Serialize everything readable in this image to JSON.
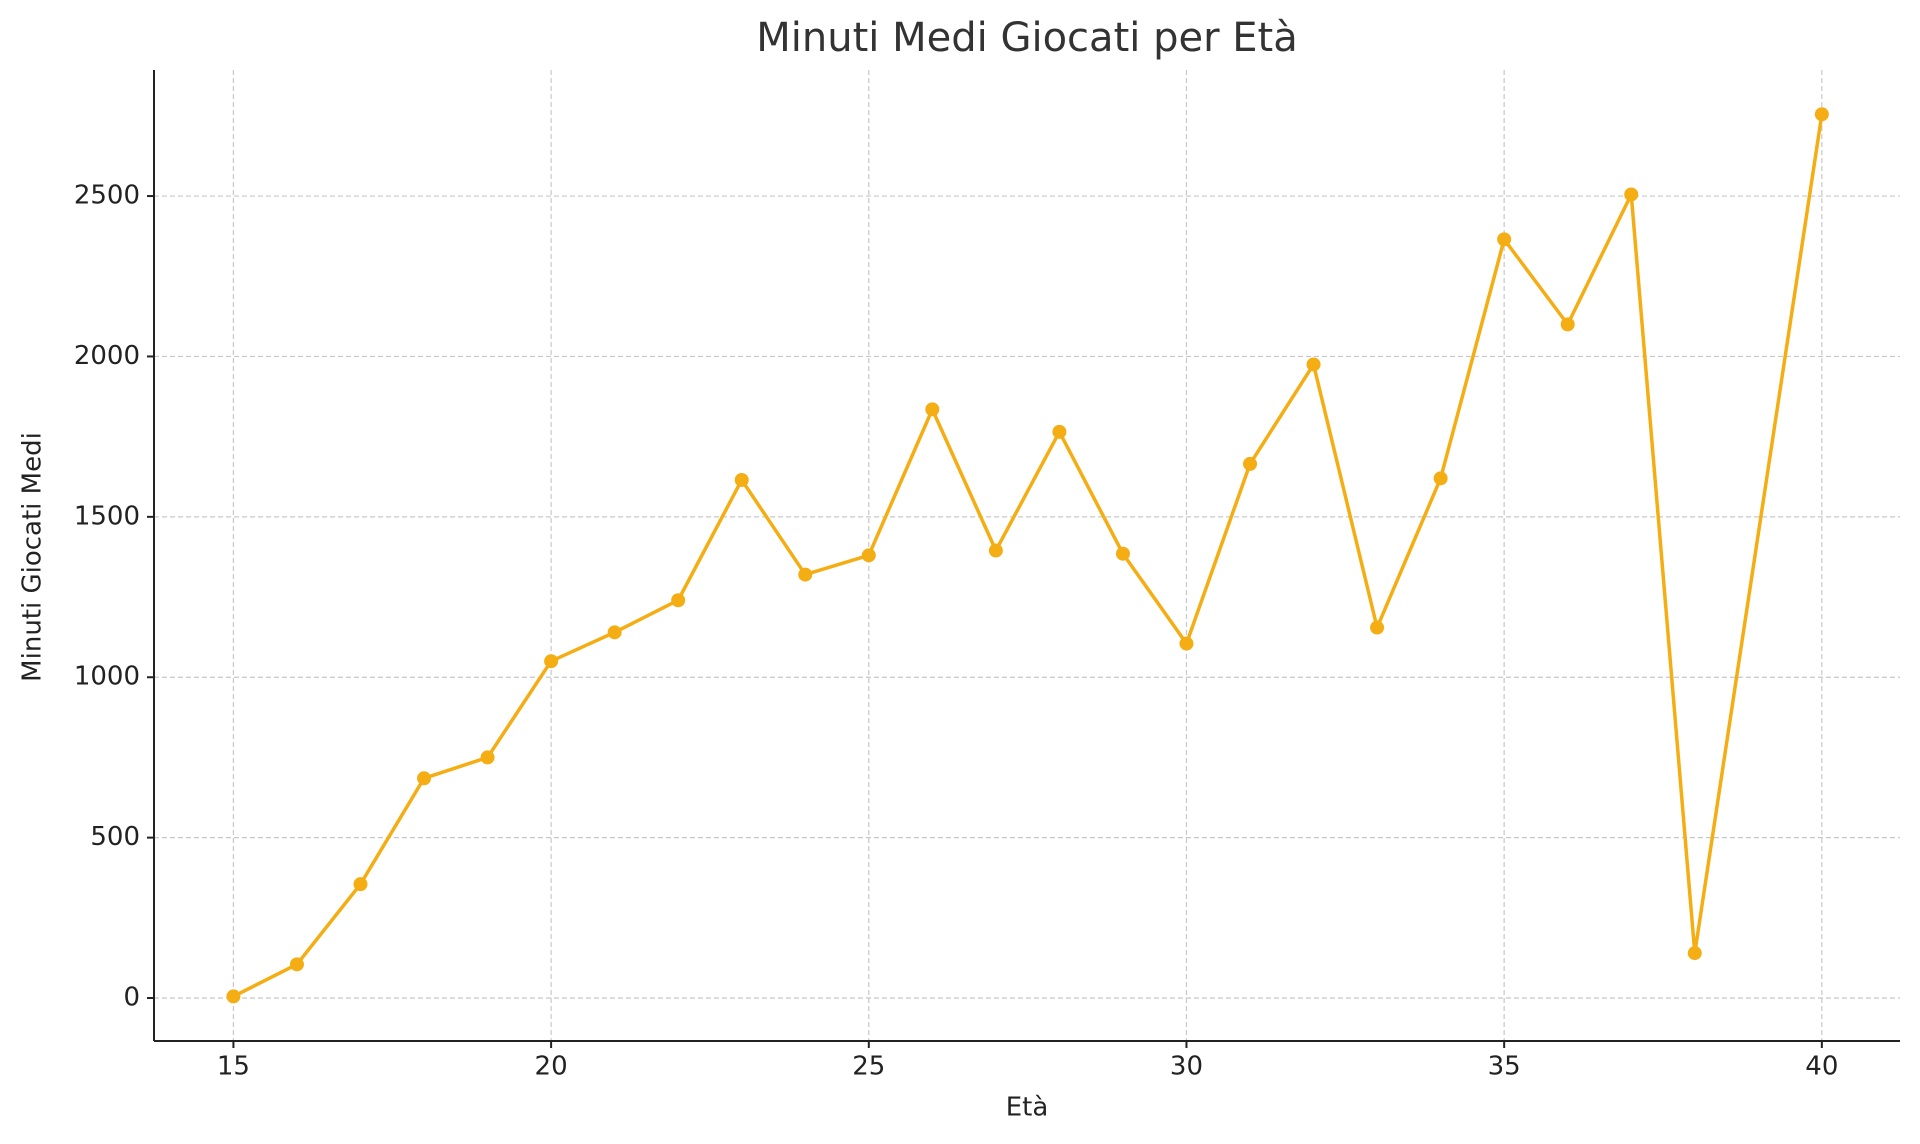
{
  "chart_data": {
    "type": "line",
    "title": "Minuti Medi Giocati per Età",
    "x_label": "Età",
    "y_label": "Minuti Giocati Medi",
    "x": [
      15,
      16,
      17,
      18,
      19,
      20,
      21,
      22,
      23,
      24,
      25,
      26,
      27,
      28,
      29,
      30,
      31,
      32,
      33,
      34,
      35,
      36,
      37,
      38,
      40
    ],
    "series": [
      {
        "name": "Minuti Giocati Medi",
        "color": "#f5ad14",
        "values": [
          5,
          105,
          355,
          685,
          750,
          1050,
          1140,
          1240,
          1615,
          1320,
          1380,
          1835,
          1395,
          1765,
          1385,
          1105,
          1665,
          1975,
          1155,
          1620,
          2365,
          2100,
          2505,
          140,
          2755
        ]
      }
    ],
    "xlim": [
      13.75,
      41.23
    ],
    "xticks": [
      15,
      20,
      25,
      30,
      35,
      40
    ],
    "ylim": [
      -134,
      2893
    ],
    "yticks": [
      0,
      500,
      1000,
      1500,
      2000,
      2500
    ],
    "grid": true
  }
}
